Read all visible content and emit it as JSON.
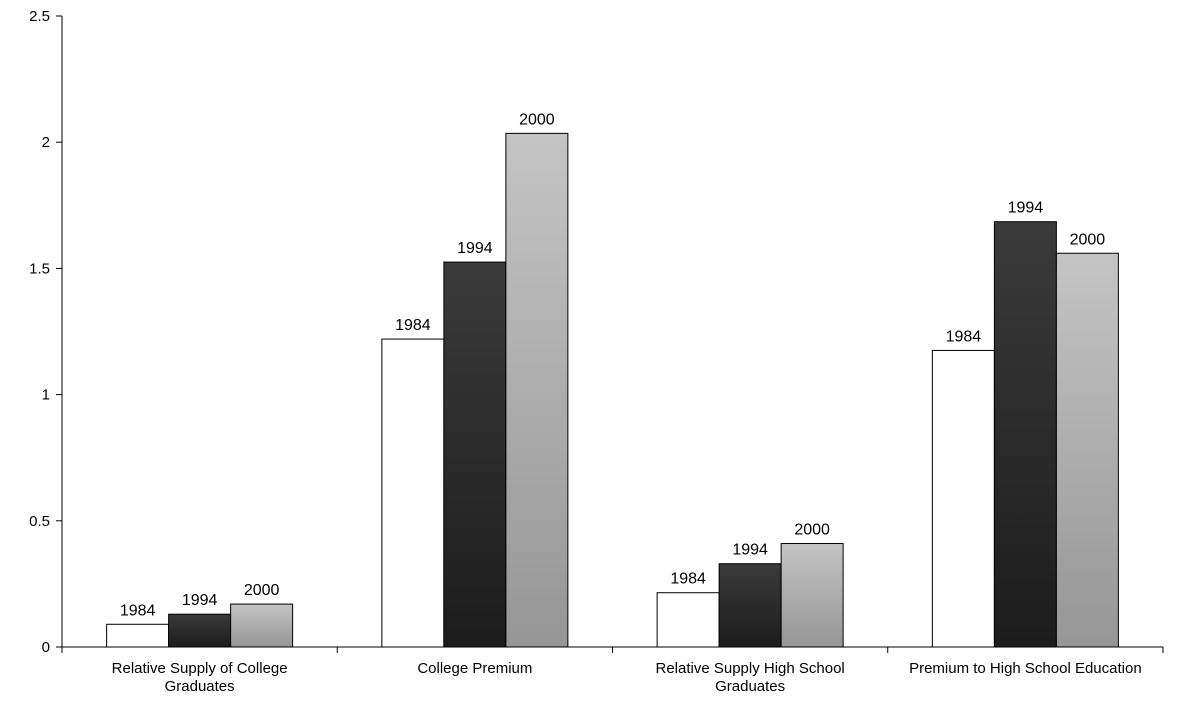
{
  "chart_data": {
    "type": "bar",
    "title": "",
    "xlabel": "",
    "ylabel": "",
    "ylim": [
      0,
      2.5
    ],
    "yticks": [
      "0",
      "0.5",
      "1",
      "1.5",
      "2",
      "2.5"
    ],
    "grid": false,
    "legend": "none",
    "categories": [
      [
        "Relative Supply of College",
        "Graduates"
      ],
      [
        "College Premium"
      ],
      [
        "Relative Supply High School",
        "Graduates"
      ],
      [
        "Premium to High School Education"
      ]
    ],
    "series": [
      {
        "name": "1984",
        "color": "#ffffff",
        "values": [
          0.09,
          1.22,
          0.215,
          1.175
        ]
      },
      {
        "name": "1994",
        "color": "#262626",
        "values": [
          0.13,
          1.525,
          0.33,
          1.685
        ]
      },
      {
        "name": "2000",
        "color": "#b4b4b4",
        "values": [
          0.17,
          2.035,
          0.41,
          1.56
        ]
      }
    ]
  }
}
